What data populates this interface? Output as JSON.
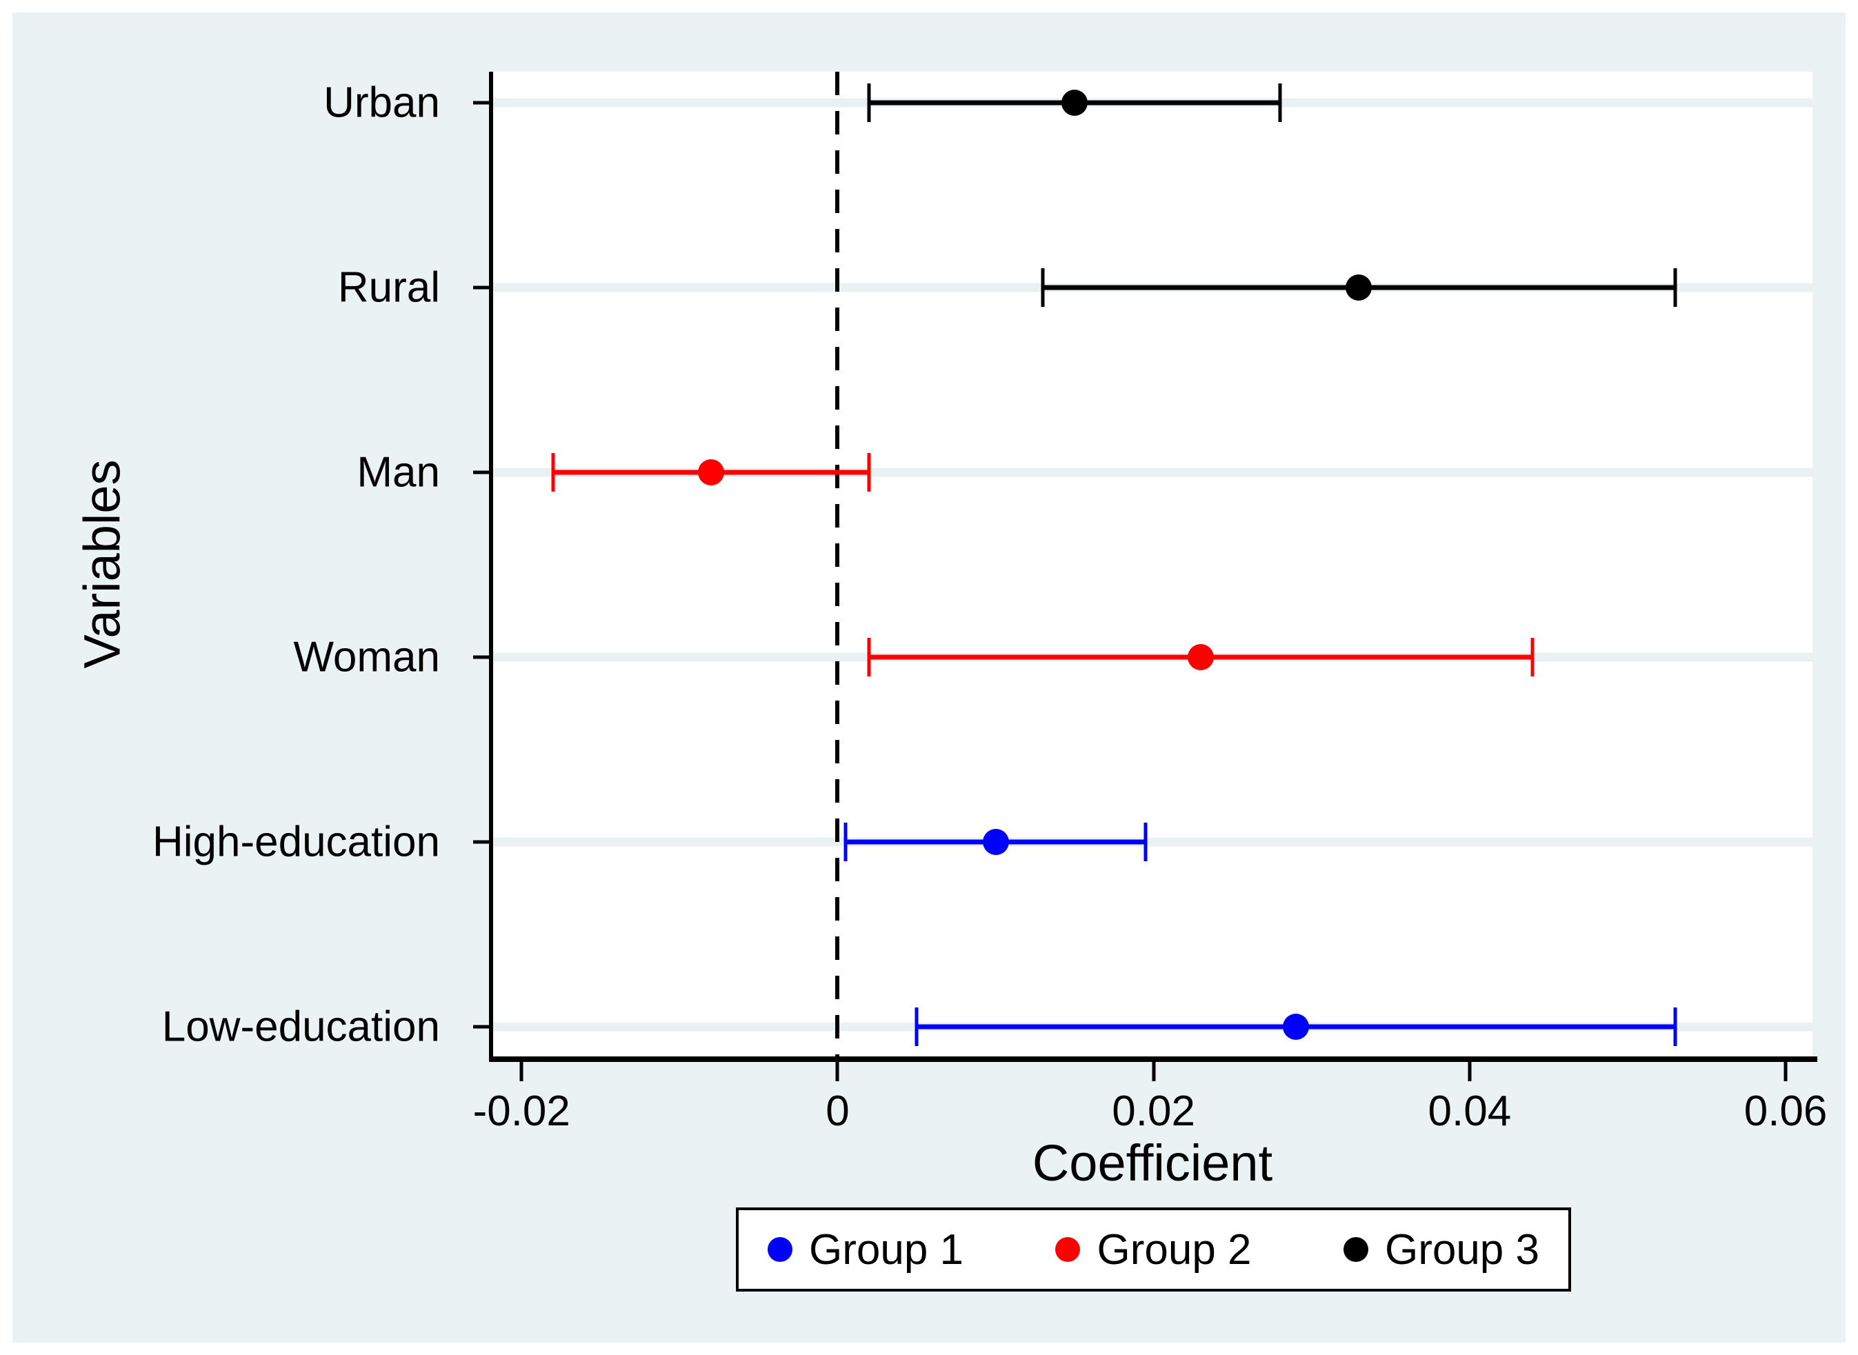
{
  "chart_data": {
    "type": "scatter",
    "subtype": "coefficient-plot-with-error-bars",
    "title": "",
    "xlabel": "Coefficient",
    "ylabel": "Variables",
    "xlim": [
      -0.0218,
      0.0617
    ],
    "x_ticks": [
      -0.02,
      0,
      0.02,
      0.04,
      0.06
    ],
    "x_tick_labels": [
      "-0.02",
      "0",
      "0.02",
      "0.04",
      "0.06"
    ],
    "grid": true,
    "zero_line": {
      "x": 0,
      "style": "dashed",
      "color": "#000000"
    },
    "categories": [
      "Urban",
      "Rural",
      "Man",
      "Woman",
      "High-education",
      "Low-education"
    ],
    "points": [
      {
        "category": "Urban",
        "group": "Group 3",
        "estimate": 0.015,
        "ci_low": 0.002,
        "ci_high": 0.028,
        "color": "#000000"
      },
      {
        "category": "Rural",
        "group": "Group 3",
        "estimate": 0.033,
        "ci_low": 0.013,
        "ci_high": 0.053,
        "color": "#000000"
      },
      {
        "category": "Man",
        "group": "Group 2",
        "estimate": -0.008,
        "ci_low": -0.018,
        "ci_high": 0.002,
        "color": "#FF0000"
      },
      {
        "category": "Woman",
        "group": "Group 2",
        "estimate": 0.023,
        "ci_low": 0.002,
        "ci_high": 0.044,
        "color": "#FF0000"
      },
      {
        "category": "High-education",
        "group": "Group 1",
        "estimate": 0.01,
        "ci_low": 0.0005,
        "ci_high": 0.0195,
        "color": "#0000FF"
      },
      {
        "category": "Low-education",
        "group": "Group 1",
        "estimate": 0.029,
        "ci_low": 0.005,
        "ci_high": 0.053,
        "color": "#0000FF"
      }
    ],
    "legend": {
      "position": "bottom-center",
      "entries": [
        {
          "label": "Group 1",
          "color": "#0000FF"
        },
        {
          "label": "Group 2",
          "color": "#FF0000"
        },
        {
          "label": "Group 3",
          "color": "#000000"
        }
      ]
    },
    "colors": {
      "background": "#EAF2F3",
      "plot_background": "#FFFFFF",
      "gridline": "#E9F1F3",
      "axis": "#000000"
    }
  }
}
